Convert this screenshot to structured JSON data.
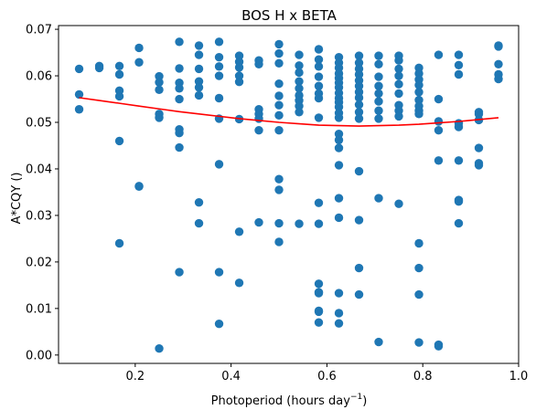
{
  "chart_data": {
    "type": "scatter",
    "title": "BOS H x BETA",
    "xlabel": "Photoperiod (hours day",
    "xlabel_superscript": "−1",
    "xlabel_suffix": ")",
    "ylabel": "A*CQY ()",
    "xlim": [
      0.04,
      1.0
    ],
    "ylim": [
      -0.0018,
      0.0708
    ],
    "xticks": [
      0.2,
      0.4,
      0.6,
      0.8,
      1.0
    ],
    "xtick_labels": [
      "0.2",
      "0.4",
      "0.6",
      "0.8",
      "1.0"
    ],
    "yticks": [
      0.0,
      0.01,
      0.02,
      0.03,
      0.04,
      0.05,
      0.06,
      0.07
    ],
    "ytick_labels": [
      "0.00",
      "0.01",
      "0.02",
      "0.03",
      "0.04",
      "0.05",
      "0.06",
      "0.07"
    ],
    "grid": false,
    "colors": {
      "points": "#1f77b4",
      "fit": "#ff0000"
    },
    "series": [
      {
        "kind": "points",
        "points": [
          [
            0.083,
            0.0615
          ],
          [
            0.083,
            0.056
          ],
          [
            0.083,
            0.0528
          ],
          [
            0.125,
            0.0621
          ],
          [
            0.125,
            0.0617
          ],
          [
            0.167,
            0.0621
          ],
          [
            0.167,
            0.0603
          ],
          [
            0.167,
            0.0568
          ],
          [
            0.167,
            0.0556
          ],
          [
            0.167,
            0.046
          ],
          [
            0.167,
            0.024
          ],
          [
            0.208,
            0.066
          ],
          [
            0.208,
            0.0629
          ],
          [
            0.208,
            0.0363
          ],
          [
            0.208,
            0.0362
          ],
          [
            0.25,
            0.0599
          ],
          [
            0.25,
            0.0586
          ],
          [
            0.25,
            0.057
          ],
          [
            0.25,
            0.0518
          ],
          [
            0.25,
            0.051
          ],
          [
            0.25,
            0.0014
          ],
          [
            0.292,
            0.0673
          ],
          [
            0.292,
            0.0616
          ],
          [
            0.292,
            0.0585
          ],
          [
            0.292,
            0.0573
          ],
          [
            0.292,
            0.055
          ],
          [
            0.292,
            0.0485
          ],
          [
            0.292,
            0.0477
          ],
          [
            0.292,
            0.0446
          ],
          [
            0.292,
            0.0178
          ],
          [
            0.333,
            0.0665
          ],
          [
            0.333,
            0.0645
          ],
          [
            0.333,
            0.0615
          ],
          [
            0.333,
            0.0588
          ],
          [
            0.333,
            0.0575
          ],
          [
            0.333,
            0.0558
          ],
          [
            0.333,
            0.0328
          ],
          [
            0.333,
            0.0283
          ],
          [
            0.375,
            0.0673
          ],
          [
            0.375,
            0.064
          ],
          [
            0.375,
            0.062
          ],
          [
            0.375,
            0.06
          ],
          [
            0.375,
            0.0552
          ],
          [
            0.375,
            0.0508
          ],
          [
            0.375,
            0.041
          ],
          [
            0.375,
            0.0178
          ],
          [
            0.375,
            0.0067
          ],
          [
            0.417,
            0.0643
          ],
          [
            0.417,
            0.063
          ],
          [
            0.417,
            0.0618
          ],
          [
            0.417,
            0.06
          ],
          [
            0.417,
            0.0587
          ],
          [
            0.417,
            0.0507
          ],
          [
            0.417,
            0.0265
          ],
          [
            0.417,
            0.0155
          ],
          [
            0.458,
            0.0633
          ],
          [
            0.458,
            0.0625
          ],
          [
            0.458,
            0.0528
          ],
          [
            0.458,
            0.0518
          ],
          [
            0.458,
            0.0508
          ],
          [
            0.458,
            0.0483
          ],
          [
            0.458,
            0.0285
          ],
          [
            0.5,
            0.0668
          ],
          [
            0.5,
            0.0648
          ],
          [
            0.5,
            0.0627
          ],
          [
            0.5,
            0.0583
          ],
          [
            0.5,
            0.0557
          ],
          [
            0.5,
            0.0537
          ],
          [
            0.5,
            0.0515
          ],
          [
            0.5,
            0.0483
          ],
          [
            0.5,
            0.0378
          ],
          [
            0.5,
            0.0355
          ],
          [
            0.5,
            0.0283
          ],
          [
            0.5,
            0.0243
          ],
          [
            0.542,
            0.0645
          ],
          [
            0.542,
            0.0622
          ],
          [
            0.542,
            0.0607
          ],
          [
            0.542,
            0.0588
          ],
          [
            0.542,
            0.0573
          ],
          [
            0.542,
            0.0558
          ],
          [
            0.542,
            0.0547
          ],
          [
            0.542,
            0.0535
          ],
          [
            0.542,
            0.0522
          ],
          [
            0.542,
            0.0282
          ],
          [
            0.583,
            0.0657
          ],
          [
            0.583,
            0.0635
          ],
          [
            0.583,
            0.062
          ],
          [
            0.583,
            0.0598
          ],
          [
            0.583,
            0.0578
          ],
          [
            0.583,
            0.0562
          ],
          [
            0.583,
            0.0552
          ],
          [
            0.583,
            0.051
          ],
          [
            0.583,
            0.0327
          ],
          [
            0.583,
            0.0282
          ],
          [
            0.583,
            0.0153
          ],
          [
            0.583,
            0.0135
          ],
          [
            0.583,
            0.0133
          ],
          [
            0.583,
            0.0095
          ],
          [
            0.583,
            0.0093
          ],
          [
            0.583,
            0.007
          ],
          [
            0.625,
            0.064
          ],
          [
            0.625,
            0.0628
          ],
          [
            0.625,
            0.0617
          ],
          [
            0.625,
            0.0605
          ],
          [
            0.625,
            0.0595
          ],
          [
            0.625,
            0.0585
          ],
          [
            0.625,
            0.0575
          ],
          [
            0.625,
            0.0563
          ],
          [
            0.625,
            0.0552
          ],
          [
            0.625,
            0.0543
          ],
          [
            0.625,
            0.0533
          ],
          [
            0.625,
            0.052
          ],
          [
            0.625,
            0.051
          ],
          [
            0.625,
            0.0475
          ],
          [
            0.625,
            0.0462
          ],
          [
            0.625,
            0.0445
          ],
          [
            0.625,
            0.0408
          ],
          [
            0.625,
            0.0337
          ],
          [
            0.625,
            0.0295
          ],
          [
            0.625,
            0.0133
          ],
          [
            0.625,
            0.009
          ],
          [
            0.625,
            0.0068
          ],
          [
            0.667,
            0.0643
          ],
          [
            0.667,
            0.0628
          ],
          [
            0.667,
            0.0615
          ],
          [
            0.667,
            0.0603
          ],
          [
            0.667,
            0.059
          ],
          [
            0.667,
            0.0578
          ],
          [
            0.667,
            0.0565
          ],
          [
            0.667,
            0.0553
          ],
          [
            0.667,
            0.0538
          ],
          [
            0.667,
            0.0522
          ],
          [
            0.667,
            0.0508
          ],
          [
            0.667,
            0.0395
          ],
          [
            0.667,
            0.029
          ],
          [
            0.667,
            0.0187
          ],
          [
            0.667,
            0.013
          ],
          [
            0.708,
            0.0643
          ],
          [
            0.708,
            0.0625
          ],
          [
            0.708,
            0.0598
          ],
          [
            0.708,
            0.0578
          ],
          [
            0.708,
            0.0562
          ],
          [
            0.708,
            0.0545
          ],
          [
            0.708,
            0.0525
          ],
          [
            0.708,
            0.0508
          ],
          [
            0.708,
            0.0337
          ],
          [
            0.708,
            0.0028
          ],
          [
            0.75,
            0.0643
          ],
          [
            0.75,
            0.0633
          ],
          [
            0.75,
            0.0615
          ],
          [
            0.75,
            0.06
          ],
          [
            0.75,
            0.0582
          ],
          [
            0.75,
            0.0562
          ],
          [
            0.75,
            0.0537
          ],
          [
            0.75,
            0.0525
          ],
          [
            0.75,
            0.0513
          ],
          [
            0.75,
            0.0325
          ],
          [
            0.792,
            0.0617
          ],
          [
            0.792,
            0.0605
          ],
          [
            0.792,
            0.0592
          ],
          [
            0.792,
            0.058
          ],
          [
            0.792,
            0.0565
          ],
          [
            0.792,
            0.0548
          ],
          [
            0.792,
            0.0535
          ],
          [
            0.792,
            0.0525
          ],
          [
            0.792,
            0.0518
          ],
          [
            0.792,
            0.024
          ],
          [
            0.792,
            0.0187
          ],
          [
            0.792,
            0.013
          ],
          [
            0.792,
            0.0027
          ],
          [
            0.833,
            0.0645
          ],
          [
            0.833,
            0.055
          ],
          [
            0.833,
            0.0502
          ],
          [
            0.833,
            0.0483
          ],
          [
            0.833,
            0.0418
          ],
          [
            0.833,
            0.0022
          ],
          [
            0.833,
            0.0019
          ],
          [
            0.875,
            0.0645
          ],
          [
            0.875,
            0.0623
          ],
          [
            0.875,
            0.0603
          ],
          [
            0.875,
            0.0498
          ],
          [
            0.875,
            0.049
          ],
          [
            0.875,
            0.0418
          ],
          [
            0.875,
            0.0333
          ],
          [
            0.875,
            0.033
          ],
          [
            0.875,
            0.0283
          ],
          [
            0.917,
            0.0522
          ],
          [
            0.917,
            0.0518
          ],
          [
            0.917,
            0.0505
          ],
          [
            0.917,
            0.0445
          ],
          [
            0.917,
            0.0412
          ],
          [
            0.917,
            0.0408
          ],
          [
            0.958,
            0.0665
          ],
          [
            0.958,
            0.0663
          ],
          [
            0.958,
            0.0625
          ],
          [
            0.958,
            0.0603
          ],
          [
            0.958,
            0.0593
          ]
        ]
      },
      {
        "kind": "line",
        "x": [
          0.083,
          0.125,
          0.167,
          0.208,
          0.25,
          0.292,
          0.333,
          0.375,
          0.417,
          0.458,
          0.5,
          0.542,
          0.583,
          0.625,
          0.667,
          0.708,
          0.75,
          0.792,
          0.833,
          0.875,
          0.917,
          0.958
        ],
        "y": [
          0.0553,
          0.0547,
          0.0541,
          0.0535,
          0.0529,
          0.0523,
          0.0518,
          0.0513,
          0.0508,
          0.0504,
          0.05,
          0.0497,
          0.0494,
          0.0493,
          0.0492,
          0.0493,
          0.0494,
          0.0496,
          0.0499,
          0.0502,
          0.0506,
          0.051
        ]
      }
    ]
  }
}
